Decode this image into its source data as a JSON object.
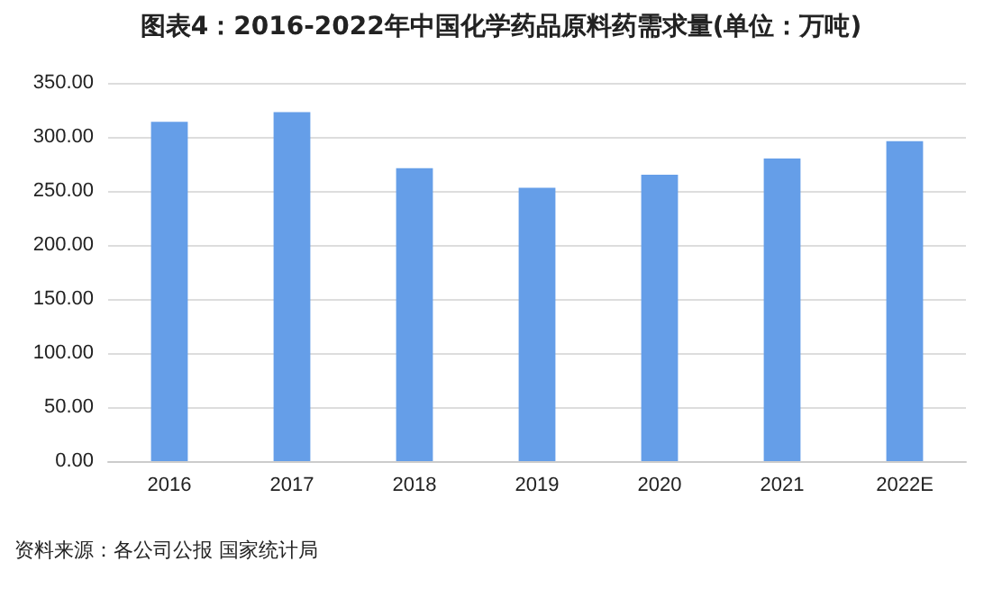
{
  "chart_data": {
    "type": "bar",
    "title": "图表4：2016-2022年中国化学药品原料药需求量(单位：万吨)",
    "categories": [
      "2016",
      "2017",
      "2018",
      "2019",
      "2020",
      "2021",
      "2022E"
    ],
    "values": [
      314,
      323,
      271,
      253,
      265,
      280,
      296
    ],
    "color": "#659ee8",
    "ylim": [
      0,
      350
    ],
    "yticks": [
      {
        "value": 0,
        "label": "0.00"
      },
      {
        "value": 50,
        "label": "50.00"
      },
      {
        "value": 100,
        "label": "100.00"
      },
      {
        "value": 150,
        "label": "150.00"
      },
      {
        "value": 200,
        "label": "200.00"
      },
      {
        "value": 250,
        "label": "250.00"
      },
      {
        "value": 300,
        "label": "300.00"
      },
      {
        "value": 350,
        "label": "350.00"
      }
    ],
    "grid": "y",
    "annotations": [
      "资料来源：各公司公报 国家统计局"
    ]
  }
}
